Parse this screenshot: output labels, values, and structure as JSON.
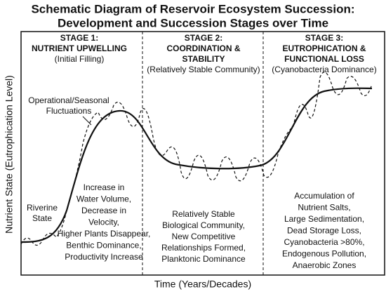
{
  "header": {
    "title": [
      "Schematic Diagram of Reservoir Ecosystem Succession:",
      "Development and Succession Stages over Time"
    ]
  },
  "axes": {
    "y_label": "Nutrient State (Eutrophication Level)",
    "x_label": "Time (Years/Decades)"
  },
  "stages": [
    {
      "heading": [
        "STAGE 1:",
        "NUTRIENT UPWELLING"
      ],
      "subtitle": "(Initial Filling)",
      "description": [
        "Increase in",
        "Water Volume,",
        "Decrease in",
        "Velocity,",
        "Higher Plants Disappear,",
        "Benthic Dominance,",
        "Productivity Increase"
      ]
    },
    {
      "heading": [
        "STAGE 2:",
        "COORDINATION &",
        "STABILITY"
      ],
      "subtitle": "(Relatively Stable Community)",
      "description": [
        "Relatively Stable",
        "Biological Community,",
        "New Competitive",
        "Relationships Formed,",
        "Planktonic Dominance"
      ]
    },
    {
      "heading": [
        "STAGE 3:",
        "EUTROPHICATION &",
        "FUNCTIONAL LOSS"
      ],
      "subtitle": "(Cyanobacteria Dominance)",
      "description": [
        "Accumulation of",
        "Nutrient Salts,",
        "Large Sedimentation,",
        "Dead Storage Loss,",
        "Cyanobacteria >80%,",
        "Endogenous Pollution,",
        "Anaerobic Zones"
      ]
    }
  ],
  "annotations": {
    "riverine": [
      "Riverine",
      "State"
    ],
    "fluctuations": [
      "Operational/Seasonal",
      "Fluctuations"
    ]
  }
}
